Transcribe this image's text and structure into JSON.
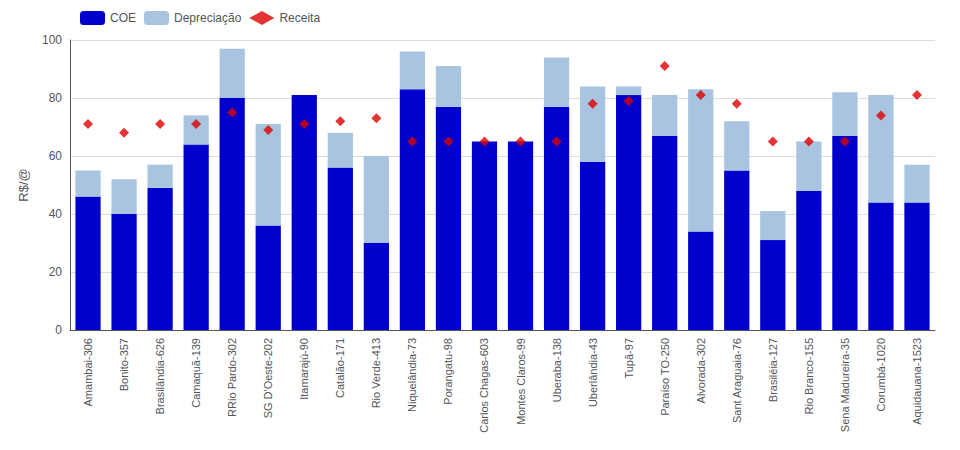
{
  "chart_data": {
    "type": "bar",
    "stacked": true,
    "categories": [
      "Amambai-306",
      "Bonito-357",
      "Brasilândia-626",
      "Camaquã-139",
      "RRio Pardo-302",
      "SG D'Oeste-202",
      "Itamarajú-90",
      "Catalão-171",
      "Rio Verde-413",
      "Niquelândia-73",
      "Porangatu-98",
      "Carlos Chagas-603",
      "Montes Claros-99",
      "Uberaba-138",
      "Uberlândia-43",
      "Tupã-97",
      "Paraíso TO-250",
      "Alvorada-302",
      "Sant Araguaia-76",
      "Brasiléia-127",
      "Rio Branco-155",
      "Sena Madureira-35",
      "Corumbá-1020",
      "Aquidauana-1523"
    ],
    "series": [
      {
        "name": "COE",
        "type": "bar",
        "color": "#0000cc",
        "values": [
          46,
          40,
          49,
          64,
          80,
          36,
          81,
          56,
          30,
          83,
          77,
          65,
          65,
          77,
          58,
          81,
          67,
          34,
          55,
          31,
          48,
          67,
          44,
          44
        ]
      },
      {
        "name": "Depreciação",
        "type": "bar",
        "color": "#a8c4e0",
        "values": [
          9,
          12,
          8,
          10,
          17,
          35,
          0,
          12,
          30,
          13,
          14,
          0,
          0,
          17,
          26,
          3,
          14,
          49,
          17,
          10,
          17,
          15,
          37,
          13
        ]
      },
      {
        "name": "Receita",
        "type": "scatter",
        "marker": "diamond",
        "color": "#dd0000",
        "values": [
          71,
          68,
          71,
          71,
          75,
          69,
          71,
          72,
          73,
          65,
          65,
          65,
          65,
          65,
          78,
          79,
          91,
          81,
          78,
          65,
          65,
          65,
          74,
          81
        ]
      }
    ],
    "ylabel": "R$/@",
    "ylim": [
      0,
      100
    ],
    "yticks": [
      0,
      20,
      40,
      60,
      80,
      100
    ],
    "grid": true,
    "legend": "upper left"
  }
}
